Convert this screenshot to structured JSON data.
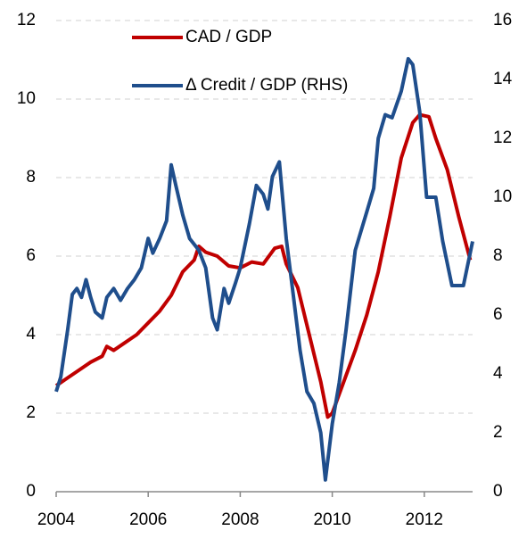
{
  "chart_data": {
    "type": "line",
    "xlim": [
      2004,
      2013.05
    ],
    "xticks": [
      2004,
      2006,
      2008,
      2010,
      2012
    ],
    "ylim": [
      0,
      12
    ],
    "yticks": [
      0,
      2,
      4,
      6,
      8,
      10,
      12
    ],
    "y2lim": [
      0,
      16
    ],
    "y2ticks": [
      0,
      2,
      4,
      6,
      8,
      10,
      12,
      14,
      16
    ],
    "grid": true,
    "legend": "top",
    "series": [
      {
        "name": "CAD / GDP",
        "color": "#c00000",
        "x": [
          2004.0,
          2004.25,
          2004.5,
          2004.75,
          2005.0,
          2005.1,
          2005.25,
          2005.5,
          2005.75,
          2006.0,
          2006.25,
          2006.5,
          2006.75,
          2007.0,
          2007.1,
          2007.25,
          2007.5,
          2007.75,
          2008.0,
          2008.25,
          2008.5,
          2008.75,
          2008.9,
          2009.0,
          2009.25,
          2009.5,
          2009.75,
          2009.9,
          2010.0,
          2010.25,
          2010.5,
          2010.75,
          2011.0,
          2011.25,
          2011.5,
          2011.75,
          2011.9,
          2012.1,
          2012.25,
          2012.5,
          2012.75,
          2013.0
        ],
        "values": [
          2.7,
          2.9,
          3.1,
          3.3,
          3.45,
          3.7,
          3.6,
          3.8,
          4.0,
          4.3,
          4.6,
          5.0,
          5.6,
          5.9,
          6.25,
          6.1,
          6.0,
          5.75,
          5.7,
          5.85,
          5.8,
          6.2,
          6.25,
          5.8,
          5.2,
          4.0,
          2.8,
          1.9,
          2.0,
          2.8,
          3.6,
          4.5,
          5.6,
          7.0,
          8.5,
          9.4,
          9.6,
          9.55,
          9.0,
          8.2,
          7.0,
          5.9
        ]
      },
      {
        "name": "Δ Credit / GDP (RHS)",
        "color": "#1f4e8c",
        "axis": "y2",
        "x": [
          2004.0,
          2004.1,
          2004.25,
          2004.35,
          2004.45,
          2004.55,
          2004.65,
          2004.75,
          2004.85,
          2005.0,
          2005.1,
          2005.25,
          2005.4,
          2005.55,
          2005.7,
          2005.85,
          2006.0,
          2006.1,
          2006.25,
          2006.4,
          2006.5,
          2006.6,
          2006.75,
          2006.9,
          2007.1,
          2007.25,
          2007.4,
          2007.5,
          2007.65,
          2007.75,
          2007.9,
          2008.0,
          2008.2,
          2008.35,
          2008.5,
          2008.6,
          2008.7,
          2008.85,
          2009.0,
          2009.15,
          2009.3,
          2009.45,
          2009.6,
          2009.75,
          2009.85,
          2010.0,
          2010.15,
          2010.3,
          2010.5,
          2010.75,
          2010.9,
          2011.0,
          2011.15,
          2011.3,
          2011.5,
          2011.65,
          2011.75,
          2011.9,
          2012.05,
          2012.25,
          2012.4,
          2012.6,
          2012.75,
          2012.85,
          2013.05
        ],
        "values": [
          3.4,
          3.9,
          5.5,
          6.7,
          6.9,
          6.6,
          7.2,
          6.6,
          6.1,
          5.9,
          6.6,
          6.9,
          6.5,
          6.9,
          7.2,
          7.6,
          8.6,
          8.1,
          8.6,
          9.2,
          11.1,
          10.4,
          9.4,
          8.6,
          8.2,
          7.6,
          5.9,
          5.5,
          6.9,
          6.4,
          7.1,
          7.6,
          9.1,
          10.4,
          10.1,
          9.6,
          10.7,
          11.2,
          8.6,
          6.7,
          4.8,
          3.4,
          3.0,
          2.0,
          0.4,
          2.3,
          3.7,
          5.5,
          8.2,
          9.5,
          10.3,
          12.0,
          12.8,
          12.7,
          13.6,
          14.7,
          14.5,
          12.9,
          10.0,
          10.0,
          8.5,
          7.0,
          7.0,
          7.0,
          8.5
        ]
      }
    ]
  }
}
